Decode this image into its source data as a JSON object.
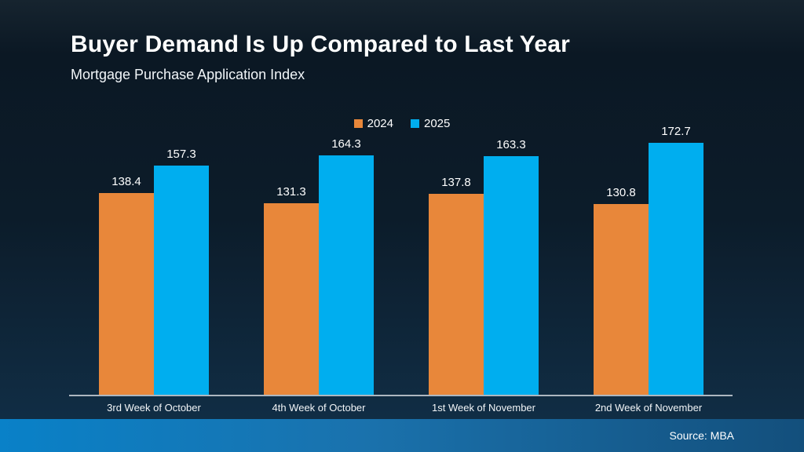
{
  "slide": {
    "title": "Buyer Demand Is Up Compared to Last Year",
    "subtitle": "Mortgage Purchase Application Index",
    "source": "Source: MBA"
  },
  "colors": {
    "series": [
      "#E8873A",
      "#00AEEF"
    ],
    "axis_line": "#ADB7C0",
    "text": "#FFFFFF",
    "background_top": "#16242F",
    "background_bottom": "#113049",
    "footer_gradient_left": "#0981C8",
    "footer_gradient_right": "#134F7C"
  },
  "chart_data": {
    "type": "bar",
    "title": "Buyer Demand Is Up Compared to Last Year",
    "subtitle": "Mortgage Purchase Application Index",
    "categories": [
      "3rd Week of October",
      "4th Week of October",
      "1st Week of November",
      "2nd Week of November"
    ],
    "series": [
      {
        "name": "2024",
        "color": "#E8873A",
        "values": [
          138.4,
          131.3,
          137.8,
          130.8
        ]
      },
      {
        "name": "2025",
        "color": "#00AEEF",
        "values": [
          157.3,
          164.3,
          163.3,
          172.7
        ]
      }
    ],
    "xlabel": "",
    "ylabel": "",
    "ylim": [
      0,
      180
    ],
    "grid": false,
    "value_labels": true,
    "legend_position": "top-center",
    "source": "Source: MBA"
  }
}
